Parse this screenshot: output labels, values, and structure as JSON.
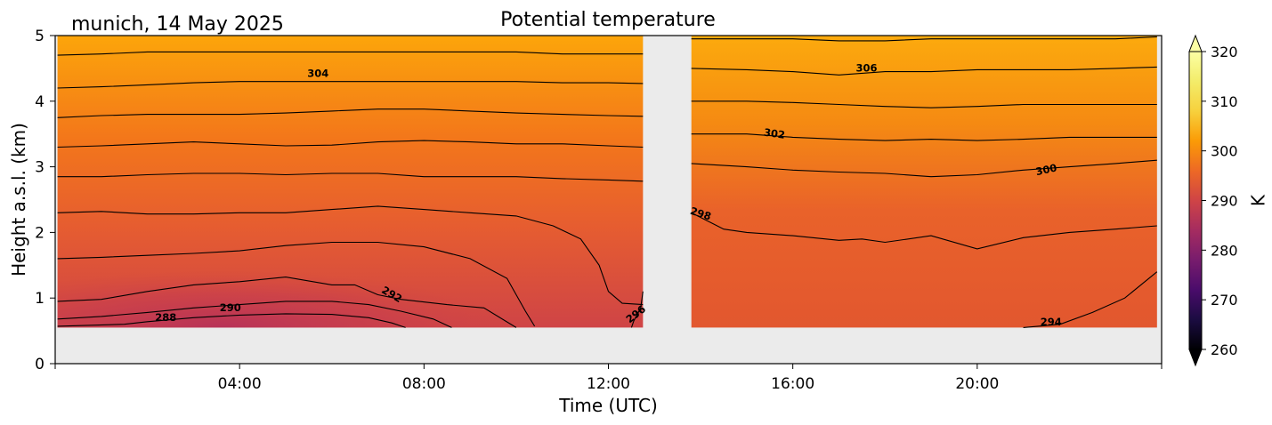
{
  "chart_data": {
    "type": "heatmap",
    "title": "Potential temperature",
    "subtitle": "munich, 14 May 2025",
    "xlabel": "Time (UTC)",
    "ylabel": "Height a.s.l. (km)",
    "xlim": [
      0,
      24
    ],
    "ylim": [
      0,
      5
    ],
    "x_tick_values": [
      4,
      8,
      12,
      16,
      20
    ],
    "x_tick_labels": [
      "04:00",
      "08:00",
      "12:00",
      "16:00",
      "20:00"
    ],
    "y_tick_values": [
      0,
      1,
      2,
      3,
      4,
      5
    ],
    "y_tick_labels": [
      "0",
      "1",
      "2",
      "3",
      "4",
      "5"
    ],
    "data_min_height_km": 0.55,
    "data_segments": [
      [
        0.05,
        12.75
      ],
      [
        13.8,
        23.9
      ]
    ],
    "colorbar": {
      "label": "K",
      "min": 260,
      "max": 320,
      "extend": "both",
      "colormap": "inferno",
      "ticks": [
        260,
        270,
        280,
        290,
        300,
        310,
        320
      ]
    },
    "contours": [
      {
        "level": 288,
        "points": [
          [
            0.05,
            0.57
          ],
          [
            1.5,
            0.6
          ],
          [
            2,
            0.64
          ],
          [
            3,
            0.7
          ],
          [
            4,
            0.74
          ],
          [
            5,
            0.76
          ],
          [
            6,
            0.75
          ],
          [
            6.8,
            0.7
          ],
          [
            7.3,
            0.62
          ],
          [
            7.6,
            0.55
          ]
        ]
      },
      {
        "level": 290,
        "points": [
          [
            0.05,
            0.68
          ],
          [
            1,
            0.72
          ],
          [
            2,
            0.78
          ],
          [
            3,
            0.85
          ],
          [
            4,
            0.9
          ],
          [
            5,
            0.95
          ],
          [
            6,
            0.95
          ],
          [
            6.8,
            0.9
          ],
          [
            7.5,
            0.8
          ],
          [
            8.2,
            0.68
          ],
          [
            8.6,
            0.55
          ]
        ]
      },
      {
        "level": 292,
        "points": [
          [
            0.05,
            0.95
          ],
          [
            1,
            0.98
          ],
          [
            2,
            1.1
          ],
          [
            3,
            1.2
          ],
          [
            4,
            1.25
          ],
          [
            5,
            1.32
          ],
          [
            6,
            1.2
          ],
          [
            6.5,
            1.2
          ],
          [
            7,
            1.05
          ],
          [
            7.5,
            0.98
          ],
          [
            8.5,
            0.9
          ],
          [
            9.3,
            0.85
          ],
          [
            10,
            0.55
          ]
        ]
      },
      {
        "level": 294,
        "points": [
          [
            0.05,
            1.6
          ],
          [
            1,
            1.62
          ],
          [
            2,
            1.65
          ],
          [
            3,
            1.68
          ],
          [
            4,
            1.72
          ],
          [
            5,
            1.8
          ],
          [
            6,
            1.85
          ],
          [
            7,
            1.85
          ],
          [
            8,
            1.78
          ],
          [
            9,
            1.6
          ],
          [
            9.8,
            1.3
          ],
          [
            10.2,
            0.8
          ],
          [
            10.4,
            0.57
          ]
        ]
      },
      {
        "level": 294,
        "points": [
          [
            21,
            0.55
          ],
          [
            21.8,
            0.6
          ],
          [
            22.5,
            0.78
          ],
          [
            23.2,
            1
          ],
          [
            23.9,
            1.4
          ]
        ]
      },
      {
        "level": 296,
        "points": [
          [
            0.05,
            2.3
          ],
          [
            1,
            2.32
          ],
          [
            2,
            2.28
          ],
          [
            3,
            2.28
          ],
          [
            4,
            2.3
          ],
          [
            5,
            2.3
          ],
          [
            6,
            2.35
          ],
          [
            7,
            2.4
          ],
          [
            8,
            2.35
          ],
          [
            9,
            2.3
          ],
          [
            10,
            2.25
          ],
          [
            10.8,
            2.1
          ],
          [
            11.4,
            1.9
          ],
          [
            11.8,
            1.5
          ],
          [
            12,
            1.1
          ],
          [
            12.3,
            0.92
          ],
          [
            12.75,
            0.9
          ]
        ]
      },
      {
        "level": 296,
        "points": [
          [
            12.75,
            1.1
          ],
          [
            12.7,
            0.85
          ],
          [
            12.55,
            0.65
          ],
          [
            12.5,
            0.55
          ]
        ]
      },
      {
        "level": 298,
        "points": [
          [
            0.05,
            2.85
          ],
          [
            1,
            2.85
          ],
          [
            2,
            2.88
          ],
          [
            3,
            2.9
          ],
          [
            4,
            2.9
          ],
          [
            5,
            2.88
          ],
          [
            6,
            2.9
          ],
          [
            7,
            2.9
          ],
          [
            8,
            2.85
          ],
          [
            9,
            2.85
          ],
          [
            10,
            2.85
          ],
          [
            11,
            2.82
          ],
          [
            12,
            2.8
          ],
          [
            12.75,
            2.78
          ]
        ]
      },
      {
        "level": 298,
        "points": [
          [
            13.8,
            2.3
          ],
          [
            14.5,
            2.05
          ],
          [
            15,
            2
          ],
          [
            16,
            1.95
          ],
          [
            17,
            1.88
          ],
          [
            17.5,
            1.9
          ],
          [
            18,
            1.85
          ],
          [
            19,
            1.95
          ],
          [
            20,
            1.75
          ],
          [
            21,
            1.92
          ],
          [
            22,
            2.0
          ],
          [
            23,
            2.05
          ],
          [
            23.9,
            2.1
          ]
        ]
      },
      {
        "level": 300,
        "points": [
          [
            0.05,
            3.3
          ],
          [
            1,
            3.32
          ],
          [
            2,
            3.35
          ],
          [
            3,
            3.38
          ],
          [
            4,
            3.35
          ],
          [
            5,
            3.32
          ],
          [
            6,
            3.33
          ],
          [
            7,
            3.38
          ],
          [
            8,
            3.4
          ],
          [
            9,
            3.38
          ],
          [
            10,
            3.35
          ],
          [
            11,
            3.35
          ],
          [
            12,
            3.32
          ],
          [
            12.75,
            3.3
          ]
        ]
      },
      {
        "level": 300,
        "points": [
          [
            13.8,
            3.05
          ],
          [
            15,
            3.0
          ],
          [
            16,
            2.95
          ],
          [
            17,
            2.92
          ],
          [
            18,
            2.9
          ],
          [
            19,
            2.85
          ],
          [
            20,
            2.88
          ],
          [
            21,
            2.95
          ],
          [
            22,
            3.0
          ],
          [
            23,
            3.05
          ],
          [
            23.9,
            3.1
          ]
        ]
      },
      {
        "level": 302,
        "points": [
          [
            0.05,
            3.75
          ],
          [
            1,
            3.78
          ],
          [
            2,
            3.8
          ],
          [
            3,
            3.8
          ],
          [
            4,
            3.8
          ],
          [
            5,
            3.82
          ],
          [
            6,
            3.85
          ],
          [
            7,
            3.88
          ],
          [
            8,
            3.88
          ],
          [
            9,
            3.85
          ],
          [
            10,
            3.82
          ],
          [
            11,
            3.8
          ],
          [
            12,
            3.78
          ],
          [
            12.75,
            3.77
          ]
        ]
      },
      {
        "level": 302,
        "points": [
          [
            13.8,
            3.5
          ],
          [
            15,
            3.5
          ],
          [
            16,
            3.45
          ],
          [
            17,
            3.42
          ],
          [
            18,
            3.4
          ],
          [
            19,
            3.42
          ],
          [
            20,
            3.4
          ],
          [
            21,
            3.42
          ],
          [
            22,
            3.45
          ],
          [
            23,
            3.45
          ],
          [
            23.9,
            3.45
          ]
        ]
      },
      {
        "level": 304,
        "points": [
          [
            0.05,
            4.2
          ],
          [
            1,
            4.22
          ],
          [
            2,
            4.25
          ],
          [
            3,
            4.28
          ],
          [
            4,
            4.3
          ],
          [
            5,
            4.3
          ],
          [
            6,
            4.3
          ],
          [
            7,
            4.3
          ],
          [
            8,
            4.3
          ],
          [
            9,
            4.3
          ],
          [
            10,
            4.3
          ],
          [
            11,
            4.28
          ],
          [
            12,
            4.28
          ],
          [
            12.75,
            4.27
          ]
        ]
      },
      {
        "level": 304,
        "points": [
          [
            13.8,
            4.0
          ],
          [
            15,
            4.0
          ],
          [
            16,
            3.98
          ],
          [
            17,
            3.95
          ],
          [
            18,
            3.92
          ],
          [
            19,
            3.9
          ],
          [
            20,
            3.92
          ],
          [
            21,
            3.95
          ],
          [
            22,
            3.95
          ],
          [
            23,
            3.95
          ],
          [
            23.9,
            3.95
          ]
        ]
      },
      {
        "level": 306,
        "points": [
          [
            0.05,
            4.7
          ],
          [
            1,
            4.72
          ],
          [
            2,
            4.75
          ],
          [
            3,
            4.75
          ],
          [
            4,
            4.75
          ],
          [
            5,
            4.75
          ],
          [
            6,
            4.75
          ],
          [
            7,
            4.75
          ],
          [
            8,
            4.75
          ],
          [
            9,
            4.75
          ],
          [
            10,
            4.75
          ],
          [
            11,
            4.72
          ],
          [
            12,
            4.72
          ],
          [
            12.75,
            4.72
          ]
        ]
      },
      {
        "level": 306,
        "points": [
          [
            13.8,
            4.5
          ],
          [
            15,
            4.48
          ],
          [
            16,
            4.45
          ],
          [
            17,
            4.4
          ],
          [
            18,
            4.45
          ],
          [
            19,
            4.45
          ],
          [
            20,
            4.48
          ],
          [
            21,
            4.48
          ],
          [
            22,
            4.48
          ],
          [
            23,
            4.5
          ],
          [
            23.9,
            4.52
          ]
        ]
      },
      {
        "level": 308,
        "points": [
          [
            13.8,
            4.95
          ],
          [
            15,
            4.95
          ],
          [
            16,
            4.95
          ],
          [
            17,
            4.92
          ],
          [
            18,
            4.92
          ],
          [
            19,
            4.95
          ],
          [
            20,
            4.95
          ],
          [
            21,
            4.95
          ],
          [
            22,
            4.95
          ],
          [
            23,
            4.95
          ],
          [
            23.9,
            4.98
          ]
        ]
      }
    ],
    "contour_labels": [
      {
        "text": "288",
        "x": 2.4,
        "y": 0.7,
        "angle": 0
      },
      {
        "text": "290",
        "x": 3.8,
        "y": 0.85,
        "angle": 0
      },
      {
        "text": "292",
        "x": 7.3,
        "y": 1.05,
        "angle": 30
      },
      {
        "text": "294",
        "x": 21.6,
        "y": 0.63,
        "angle": 0
      },
      {
        "text": "296",
        "x": 12.6,
        "y": 0.75,
        "angle": -38
      },
      {
        "text": "298",
        "x": 14.0,
        "y": 2.28,
        "angle": 18
      },
      {
        "text": "300",
        "x": 21.5,
        "y": 2.95,
        "angle": -12
      },
      {
        "text": "302",
        "x": 15.6,
        "y": 3.5,
        "angle": 8
      },
      {
        "text": "304",
        "x": 5.7,
        "y": 4.42,
        "angle": 0
      },
      {
        "text": "306",
        "x": 17.6,
        "y": 4.5,
        "angle": 0
      }
    ]
  }
}
